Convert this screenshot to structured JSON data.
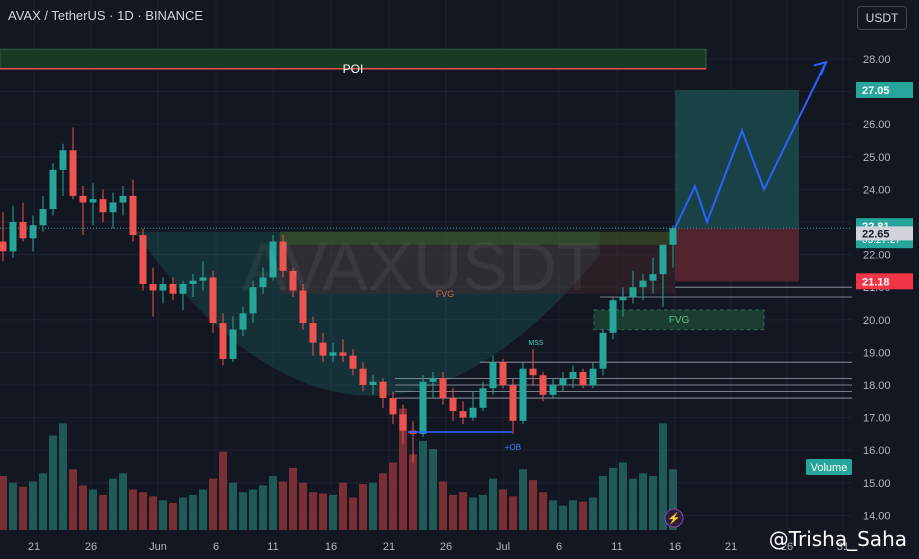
{
  "header": {
    "title": "AVAX / TetherUS · 1D · BINANCE",
    "currency_button": "USDT"
  },
  "watermark": "@Trisha_Saha",
  "annotations": {
    "poi": "POI",
    "fvg": [
      "FVG",
      "FVG"
    ],
    "mss": "MSS",
    "ob": "+OB",
    "volume_badge": "Volume",
    "symbol_watermark": "AVAXUSDT"
  },
  "colors": {
    "bull": "#26a69a",
    "bear": "#ef5350",
    "background": "#131722",
    "projection": "#2962ff",
    "price_badge": "#26a69a",
    "stop_badge": "#f23645"
  },
  "price_labels": {
    "target": "27.05",
    "current": "22.81",
    "countdown": "03:27:27",
    "marker": "22.65",
    "stop": "21.18"
  },
  "chart_data": {
    "type": "candlestick",
    "title": "AVAX / TetherUS · 1D · BINANCE",
    "ylim": [
      13.5,
      29.0
    ],
    "yticks": [
      14.0,
      15.0,
      16.0,
      17.0,
      18.0,
      19.0,
      20.0,
      21.0,
      22.0,
      23.0,
      24.0,
      25.0,
      26.0,
      27.0,
      28.0
    ],
    "ytick_labels": [
      "14.00",
      "15.00",
      "16.00",
      "17.00",
      "18.00",
      "19.00",
      "20.00",
      "21.00",
      "22.00",
      "23.00",
      "24.00",
      "25.00",
      "26.00",
      "27.00",
      "28.00"
    ],
    "xtick_labels": [
      "21",
      "26",
      "Jun",
      "6",
      "11",
      "16",
      "21",
      "26",
      "Jul",
      "6",
      "11",
      "16",
      "21",
      "26",
      "31"
    ],
    "candles": [
      [
        22.4,
        23.3,
        21.8,
        22.1
      ],
      [
        22.1,
        23.5,
        21.9,
        23.0
      ],
      [
        23.0,
        23.6,
        22.4,
        22.5
      ],
      [
        22.5,
        23.2,
        22.1,
        22.9
      ],
      [
        22.9,
        23.8,
        22.7,
        23.4
      ],
      [
        23.4,
        24.8,
        23.2,
        24.6
      ],
      [
        24.6,
        25.4,
        23.8,
        25.2
      ],
      [
        25.2,
        25.9,
        23.7,
        23.8
      ],
      [
        23.8,
        24.1,
        22.6,
        23.6
      ],
      [
        23.6,
        24.2,
        22.9,
        23.7
      ],
      [
        23.7,
        24.0,
        23.0,
        23.3
      ],
      [
        23.3,
        23.9,
        22.8,
        23.6
      ],
      [
        23.6,
        24.1,
        23.2,
        23.8
      ],
      [
        23.8,
        24.3,
        22.4,
        22.6
      ],
      [
        22.6,
        22.8,
        20.9,
        21.1
      ],
      [
        21.1,
        21.6,
        20.1,
        20.9
      ],
      [
        20.9,
        21.3,
        20.5,
        21.1
      ],
      [
        21.1,
        21.3,
        20.6,
        20.8
      ],
      [
        20.8,
        21.2,
        20.3,
        21.1
      ],
      [
        21.1,
        21.4,
        20.7,
        21.2
      ],
      [
        21.2,
        21.8,
        20.9,
        21.3
      ],
      [
        21.3,
        21.5,
        19.6,
        19.9
      ],
      [
        19.9,
        20.2,
        18.6,
        18.8
      ],
      [
        18.8,
        20.1,
        18.7,
        19.7
      ],
      [
        19.7,
        20.4,
        19.5,
        20.2
      ],
      [
        20.2,
        21.2,
        19.9,
        21.0
      ],
      [
        21.0,
        21.6,
        20.8,
        21.3
      ],
      [
        21.3,
        22.6,
        21.2,
        22.4
      ],
      [
        22.4,
        22.6,
        21.3,
        21.5
      ],
      [
        21.5,
        21.6,
        20.7,
        20.9
      ],
      [
        20.9,
        21.1,
        19.7,
        19.9
      ],
      [
        19.9,
        20.1,
        18.9,
        19.3
      ],
      [
        19.3,
        19.6,
        18.7,
        18.9
      ],
      [
        18.9,
        19.3,
        18.7,
        19.0
      ],
      [
        19.0,
        19.4,
        18.7,
        18.9
      ],
      [
        18.9,
        19.1,
        18.3,
        18.5
      ],
      [
        18.5,
        18.7,
        17.8,
        18.0
      ],
      [
        18.0,
        18.3,
        17.7,
        18.1
      ],
      [
        18.1,
        18.2,
        17.3,
        17.6
      ],
      [
        17.6,
        17.8,
        16.8,
        17.1
      ],
      [
        17.1,
        17.4,
        16.2,
        16.6
      ],
      [
        16.6,
        16.9,
        15.6,
        16.5
      ],
      [
        16.5,
        18.3,
        16.4,
        18.1
      ],
      [
        18.1,
        18.4,
        17.6,
        18.2
      ],
      [
        18.2,
        18.4,
        17.4,
        17.6
      ],
      [
        17.6,
        17.9,
        16.9,
        17.2
      ],
      [
        17.2,
        17.5,
        16.8,
        17.0
      ],
      [
        17.0,
        17.8,
        16.9,
        17.3
      ],
      [
        17.3,
        18.1,
        17.2,
        17.9
      ],
      [
        17.9,
        18.9,
        17.7,
        18.7
      ],
      [
        18.7,
        18.8,
        17.9,
        18.0
      ],
      [
        18.0,
        18.2,
        16.5,
        16.9
      ],
      [
        16.9,
        18.7,
        16.8,
        18.5
      ],
      [
        18.5,
        19.1,
        18.0,
        18.3
      ],
      [
        18.3,
        18.4,
        17.5,
        17.7
      ],
      [
        17.7,
        18.2,
        17.6,
        18.0
      ],
      [
        18.0,
        18.4,
        17.8,
        18.2
      ],
      [
        18.2,
        18.6,
        17.9,
        18.4
      ],
      [
        18.4,
        18.5,
        17.9,
        18.0
      ],
      [
        18.0,
        18.7,
        17.9,
        18.5
      ],
      [
        18.5,
        19.7,
        18.3,
        19.6
      ],
      [
        19.6,
        20.7,
        19.4,
        20.6
      ],
      [
        20.6,
        21.0,
        20.1,
        20.7
      ],
      [
        20.7,
        21.5,
        20.5,
        21.0
      ],
      [
        21.0,
        21.4,
        20.6,
        21.2
      ],
      [
        21.2,
        21.9,
        20.8,
        21.4
      ],
      [
        21.4,
        22.2,
        20.4,
        22.3
      ],
      [
        22.3,
        22.9,
        21.6,
        22.81
      ]
    ],
    "volume": {
      "series_name": "Volume",
      "values": [
        0.4,
        0.35,
        0.32,
        0.36,
        0.42,
        0.7,
        0.79,
        0.45,
        0.33,
        0.3,
        0.26,
        0.38,
        0.42,
        0.3,
        0.28,
        0.25,
        0.22,
        0.2,
        0.24,
        0.26,
        0.3,
        0.38,
        0.58,
        0.35,
        0.28,
        0.3,
        0.33,
        0.4,
        0.36,
        0.46,
        0.35,
        0.28,
        0.27,
        0.26,
        0.35,
        0.24,
        0.34,
        0.35,
        0.42,
        0.5,
        0.9,
        0.56,
        0.66,
        0.6,
        0.36,
        0.26,
        0.28,
        0.24,
        0.26,
        0.38,
        0.3,
        0.25,
        0.45,
        0.37,
        0.28,
        0.22,
        0.18,
        0.22,
        0.21,
        0.24,
        0.4,
        0.46,
        0.5,
        0.38,
        0.42,
        0.4,
        0.79,
        0.45
      ]
    },
    "zones": {
      "poi": [
        27.7,
        28.3
      ],
      "target_zone": [
        22.81,
        27.05
      ],
      "stop_zone": [
        21.18,
        22.81
      ],
      "fvg_upper": [
        20.8,
        22.7
      ],
      "fvg_lower": [
        19.7,
        20.3
      ]
    },
    "projection_path": [
      22.81,
      24.1,
      23.0,
      25.8,
      24.0,
      27.9
    ],
    "grid": true,
    "legend": "none"
  }
}
